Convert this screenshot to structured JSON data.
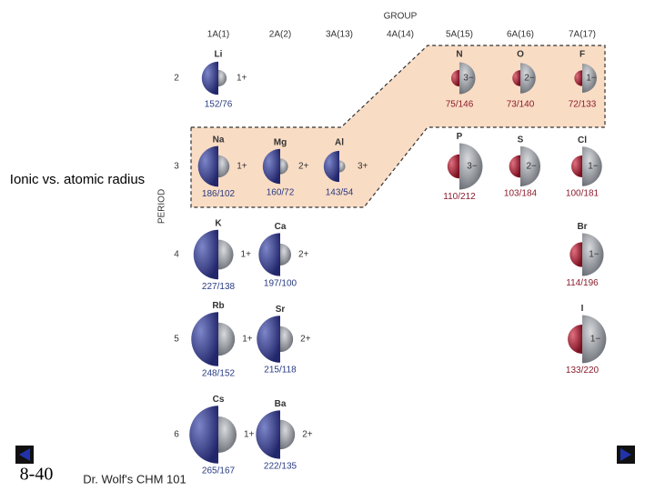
{
  "slide": {
    "side_title": "Ionic vs. atomic radius",
    "page_number": "8-40",
    "footer": "Dr. Wolf's CHM 101"
  },
  "diagram": {
    "group_title": "GROUP",
    "period_title": "PERIOD",
    "groups": [
      "1A(1)",
      "2A(2)",
      "3A(13)",
      "4A(14)",
      "5A(15)",
      "6A(16)",
      "7A(17)"
    ],
    "periods": [
      {
        "label": "2",
        "cells": [
          {
            "symbol": "Li",
            "charge": "1+",
            "radii": "152/76",
            "atomic": 152,
            "ionic": 76
          },
          null,
          null,
          null,
          {
            "symbol": "N",
            "charge": "3−",
            "radii": "75/146",
            "atomic": 75,
            "ionic": 146
          },
          {
            "symbol": "O",
            "charge": "2−",
            "radii": "73/140",
            "atomic": 73,
            "ionic": 140
          },
          {
            "symbol": "F",
            "charge": "1−",
            "radii": "72/133",
            "atomic": 72,
            "ionic": 133
          }
        ]
      },
      {
        "label": "3",
        "cells": [
          {
            "symbol": "Na",
            "charge": "1+",
            "radii": "186/102",
            "atomic": 186,
            "ionic": 102
          },
          {
            "symbol": "Mg",
            "charge": "2+",
            "radii": "160/72",
            "atomic": 160,
            "ionic": 72
          },
          {
            "symbol": "Al",
            "charge": "3+",
            "radii": "143/54",
            "atomic": 143,
            "ionic": 54
          },
          null,
          {
            "symbol": "P",
            "charge": "3−",
            "radii": "110/212",
            "atomic": 110,
            "ionic": 212
          },
          {
            "symbol": "S",
            "charge": "2−",
            "radii": "103/184",
            "atomic": 103,
            "ionic": 184
          },
          {
            "symbol": "Cl",
            "charge": "1−",
            "radii": "100/181",
            "atomic": 100,
            "ionic": 181
          }
        ]
      },
      {
        "label": "4",
        "cells": [
          {
            "symbol": "K",
            "charge": "1+",
            "radii": "227/138",
            "atomic": 227,
            "ionic": 138
          },
          {
            "symbol": "Ca",
            "charge": "2+",
            "radii": "197/100",
            "atomic": 197,
            "ionic": 100
          },
          null,
          null,
          null,
          null,
          {
            "symbol": "Br",
            "charge": "1−",
            "radii": "114/196",
            "atomic": 114,
            "ionic": 196
          }
        ]
      },
      {
        "label": "5",
        "cells": [
          {
            "symbol": "Rb",
            "charge": "1+",
            "radii": "248/152",
            "atomic": 248,
            "ionic": 152
          },
          {
            "symbol": "Sr",
            "charge": "2+",
            "radii": "215/118",
            "atomic": 215,
            "ionic": 118
          },
          null,
          null,
          null,
          null,
          {
            "symbol": "I",
            "charge": "1−",
            "radii": "133/220",
            "atomic": 133,
            "ionic": 220
          }
        ]
      },
      {
        "label": "6",
        "cells": [
          {
            "symbol": "Cs",
            "charge": "1+",
            "radii": "265/167",
            "atomic": 265,
            "ionic": 167
          },
          {
            "symbol": "Ba",
            "charge": "2+",
            "radii": "222/135",
            "atomic": 222,
            "ionic": 135
          },
          null,
          null,
          null,
          null,
          null
        ]
      }
    ]
  }
}
